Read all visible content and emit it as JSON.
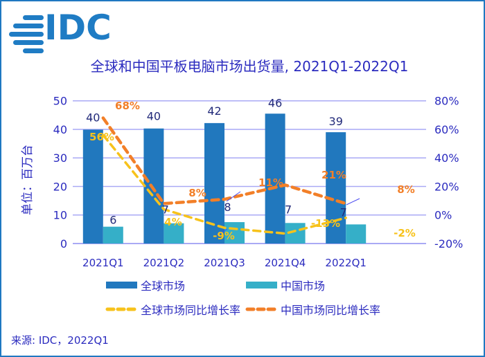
{
  "logo": {
    "text": "IDC",
    "color": "#1f7cc4"
  },
  "chart_data": {
    "type": "bar",
    "title": "全球和中国平板电脑市场出货量, 2021Q1-2022Q1",
    "ylabel": "单位：百万台",
    "ylim": [
      0,
      50
    ],
    "yticks": [
      "0",
      "10",
      "20",
      "30",
      "40",
      "50"
    ],
    "y2lim": [
      -20,
      80
    ],
    "y2ticks": [
      "-20%",
      "0%",
      "20%",
      "40%",
      "60%",
      "80%"
    ],
    "grid": true,
    "legend_position": "bottom",
    "categories": [
      "2021Q1",
      "2021Q2",
      "2021Q3",
      "2021Q4",
      "2022Q1"
    ],
    "series": [
      {
        "name": "全球市场",
        "kind": "bar",
        "axis": "left",
        "color": "#2178be",
        "values": [
          39.9,
          40.3,
          42.2,
          45.5,
          39.0
        ],
        "labels": [
          "40",
          "40",
          "42",
          "46",
          "39"
        ]
      },
      {
        "name": "中国市场",
        "kind": "bar",
        "axis": "left",
        "color": "#35afc8",
        "values": [
          5.9,
          7.1,
          7.5,
          7.2,
          6.7
        ],
        "labels": [
          "6",
          "7",
          "8",
          "7",
          "7"
        ]
      },
      {
        "name": "全球市场同比增长率",
        "kind": "line",
        "axis": "right",
        "color": "#f7c21b",
        "values": [
          56,
          4,
          -9,
          -13,
          -2
        ],
        "labels": [
          "56%",
          "4%",
          "-9%",
          "-13%",
          "-2%"
        ]
      },
      {
        "name": "中国市场同比增长率",
        "kind": "line",
        "axis": "right",
        "color": "#f27f28",
        "values": [
          68,
          8,
          11,
          21,
          8
        ],
        "labels": [
          "68%",
          "8%",
          "11%",
          "21%",
          "8%"
        ]
      }
    ]
  },
  "colors": {
    "text": "#2b2bbf",
    "grid": "#a9a9f5",
    "frame": "#1f78c1"
  },
  "source": "来源: IDC，2022Q1"
}
